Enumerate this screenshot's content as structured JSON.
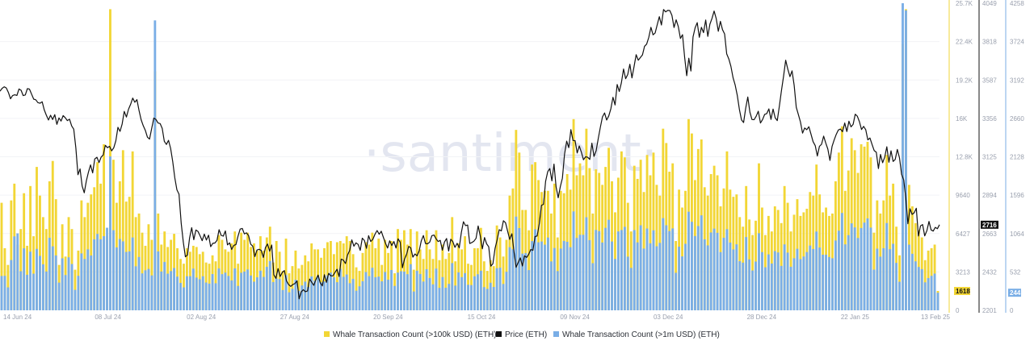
{
  "chart_data": {
    "type": "bar+line",
    "title": "",
    "watermark": "·santiment·",
    "x_tick_labels": [
      "14 Jun 24",
      "08 Jul 24",
      "02 Aug 24",
      "27 Aug 24",
      "20 Sep 24",
      "15 Oct 24",
      "09 Nov 24",
      "03 Dec 24",
      "28 Dec 24",
      "22 Jan 25",
      "13 Feb 25"
    ],
    "axes": {
      "count_100k": {
        "min": 0,
        "max": 25700,
        "ticks": [
          "0",
          "3213",
          "6427",
          "9640",
          "12.8K",
          "16K",
          "19.2K",
          "22.4K",
          "25.7K"
        ],
        "current_label": "1618",
        "color": "#f2d635"
      },
      "price": {
        "min": 2201,
        "max": 4049,
        "ticks": [
          "2201",
          "2432",
          "2663",
          "2894",
          "3125",
          "3356",
          "3587",
          "3818",
          "4049"
        ],
        "current_label": "2716",
        "color": "#111111"
      },
      "count_1m": {
        "min": 0,
        "max": 4258,
        "ticks": [
          "0",
          "532",
          "1064",
          "1596",
          "2128",
          "2660",
          "3192",
          "3724",
          "4258"
        ],
        "current_label": "244",
        "color": "#7aaee6"
      }
    },
    "series": [
      {
        "name": "Whale Transaction Count (>100k USD) (ETH)",
        "type": "bar",
        "color": "#f2d635",
        "values": [
          9000,
          5200,
          3800,
          9200,
          10600,
          5500,
          6800,
          9800,
          5400,
          10400,
          6200,
          12000,
          9600,
          7800,
          6800,
          10800,
          12500,
          9300,
          3800,
          7200,
          4500,
          7800,
          6800,
          3400,
          5000,
          9200,
          7800,
          9000,
          9700,
          10300,
          12400,
          10600,
          13900,
          6200,
          25200,
          12600,
          9000,
          10800,
          13400,
          9100,
          9500,
          13300,
          7800,
          8100,
          6500,
          5400,
          7200,
          5900,
          20000,
          8100,
          5500,
          6600,
          5300,
          5900,
          6400,
          5200,
          4300,
          3900,
          5200,
          4900,
          5400,
          5300,
          4700,
          4900,
          4000,
          3900,
          4600,
          4100,
          6300,
          5900,
          5100,
          4900,
          5600,
          6600,
          3900,
          6500,
          5900,
          6500,
          5300,
          5600,
          5000,
          6200,
          5000,
          6100,
          7000,
          4000,
          5800,
          4900,
          3300,
          6000,
          3100,
          3700,
          5000,
          3500,
          3800,
          4600,
          4100,
          5600,
          5100,
          5100,
          4400,
          5200,
          5700,
          5800,
          4700,
          5700,
          5800,
          5600,
          6200,
          5800,
          4700,
          3600,
          3300,
          4800,
          5700,
          5500,
          6500,
          5200,
          6000,
          3800,
          5900,
          4800,
          5800,
          3100,
          6800,
          5900,
          6700,
          5500,
          6800,
          3400,
          6600,
          5100,
          4300,
          6700,
          5100,
          4300,
          6700,
          4200,
          5500,
          4300,
          4800,
          7800,
          4100,
          5600,
          5100,
          6200,
          3900,
          3800,
          5200,
          5200,
          6900,
          4100,
          3300,
          4200,
          3700,
          7100,
          6100,
          4500,
          5900,
          9600,
          10200,
          15100,
          13200,
          8400,
          8400,
          6700,
          12200,
          12400,
          10900,
          9900,
          10000,
          10000,
          8100,
          10600,
          6100,
          10000,
          9800,
          11400,
          10100,
          16000,
          11300,
          12300,
          11300,
          15200,
          11900,
          8100,
          11800,
          11500,
          10500,
          12000,
          13600,
          10800,
          8200,
          11100,
          13300,
          12800,
          9000,
          6600,
          12100,
          11000,
          12600,
          9900,
          13000,
          11300,
          13200,
          10500,
          9600,
          15200,
          14000,
          11600,
          12300,
          5800,
          10100,
          8600,
          10000,
          16000,
          14800,
          10900,
          13500,
          14300,
          10300,
          9600,
          11400,
          12100,
          11300,
          8700,
          10200,
          13300,
          10100,
          9500,
          9700,
          7800,
          7000,
          10400,
          7600,
          6300,
          7500,
          12300,
          8600,
          6300,
          7900,
          6600,
          8700,
          8400,
          7300,
          10400,
          9000,
          6600,
          8000,
          9300,
          7900,
          8200,
          8500,
          9900,
          9600,
          12200,
          9700,
          8200,
          8600,
          7900,
          8100,
          10800,
          13200,
          15400,
          10000,
          11700,
          14400,
          13400,
          11500,
          13900,
          13700,
          14100,
          12800,
          6500,
          9200,
          8100,
          9200,
          13000,
          9600,
          10600,
          7000,
          4600,
          22300,
          25200,
          10500,
          8700,
          7300,
          6700,
          6100,
          4200,
          5000,
          5200,
          5500,
          1618
        ]
      },
      {
        "name": "Price (ETH)",
        "type": "line",
        "color": "#111111",
        "values": [
          3520,
          3537,
          3546,
          3539,
          3512,
          3474,
          3493,
          3498,
          3494,
          3533,
          3525,
          3493,
          3497,
          3535,
          3532,
          3502,
          3472,
          3468,
          3451,
          3447,
          3456,
          3407,
          3375,
          3346,
          3375,
          3349,
          3378,
          3320,
          3359,
          3340,
          3373,
          3360,
          3343,
          3351,
          3311,
          3291,
          3178,
          3017,
          3052,
          2949,
          2908,
          2980,
          3033,
          3076,
          3028,
          3112,
          3122,
          3090,
          3123,
          3136,
          3194,
          3180,
          3188,
          3161,
          3179,
          3221,
          3302,
          3278,
          3322,
          3398,
          3364,
          3411,
          3441,
          3478,
          3453,
          3469,
          3404,
          3348,
          3312,
          3284,
          3243,
          3231,
          3294,
          3358,
          3350,
          3328,
          3325,
          3296,
          3218,
          3199,
          3224,
          3176,
          3097,
          2998,
          2926,
          2900,
          2726,
          2612,
          2523,
          2534,
          2637,
          2698,
          2626,
          2684,
          2676,
          2649,
          2620,
          2660,
          2624,
          2653,
          2584,
          2604,
          2606,
          2622,
          2686,
          2652,
          2647,
          2679,
          2595,
          2607,
          2567,
          2592,
          2597,
          2648,
          2690,
          2694,
          2661,
          2667,
          2651,
          2599,
          2587,
          2524,
          2564,
          2568,
          2562,
          2519,
          2579,
          2600,
          2557,
          2594,
          2415,
          2393,
          2452,
          2404,
          2429,
          2440,
          2379,
          2356,
          2345,
          2356,
          2362,
          2378,
          2270,
          2312,
          2325,
          2313,
          2318,
          2389,
          2370,
          2351,
          2387,
          2413,
          2367,
          2348,
          2415,
          2369,
          2423,
          2409,
          2408,
          2428,
          2448,
          2404,
          2509,
          2503,
          2483,
          2534,
          2562,
          2625,
          2587,
          2607,
          2598,
          2562,
          2635,
          2621,
          2574,
          2650,
          2615,
          2628,
          2659,
          2681,
          2659,
          2677,
          2640,
          2605,
          2576,
          2619,
          2591,
          2615,
          2576,
          2631,
          2611,
          2457,
          2508,
          2538,
          2585,
          2577,
          2521,
          2540,
          2529,
          2559,
          2619,
          2651,
          2603,
          2601,
          2612,
          2650,
          2654,
          2631,
          2615,
          2622,
          2563,
          2612,
          2633,
          2558,
          2629,
          2614,
          2580,
          2604,
          2577,
          2669,
          2734,
          2711,
          2714,
          2603,
          2609,
          2617,
          2634,
          2709,
          2649,
          2571,
          2639,
          2601,
          2583,
          2467,
          2482,
          2573,
          2625,
          2686,
          2679,
          2740,
          2728,
          2677,
          2628,
          2662,
          2552,
          2460,
          2489,
          2517,
          2468,
          2529,
          2519,
          2538,
          2567,
          2562,
          2645,
          2648,
          2721,
          2832,
          2839,
          2977,
          3035,
          3054,
          2980,
          3081,
          2943,
          2878,
          2945,
          2996,
          3138,
          3219,
          3180,
          3288,
          3223,
          3222,
          3148,
          3190,
          3152,
          3107,
          3125,
          3122,
          3109,
          3207,
          3127,
          3162,
          3235,
          3303,
          3365,
          3389,
          3346,
          3371,
          3414,
          3483,
          3437,
          3560,
          3518,
          3570,
          3653,
          3595,
          3620,
          3682,
          3600,
          3668,
          3739,
          3706,
          3722,
          3738,
          3790,
          3803,
          3843,
          3904,
          3859,
          3870,
          3920,
          3968,
          3918,
          4011,
          3997,
          4006,
          4005,
          3976,
          3903,
          3949,
          3908,
          3837,
          3860,
          3725,
          3613,
          3718,
          3641,
          3846,
          3901,
          3932,
          3844,
          3904,
          3872,
          3948,
          3849,
          3923,
          3958,
          4002,
          3957,
          3880,
          3940,
          3890,
          3864,
          3744,
          3714,
          3669,
          3600,
          3556,
          3494,
          3410,
          3347,
          3331,
          3417,
          3485,
          3393,
          3349,
          3348,
          3369,
          3399,
          3328,
          3349,
          3380,
          3385,
          3413,
          3350,
          3412,
          3360,
          3343,
          3430,
          3524,
          3610,
          3706,
          3651,
          3607,
          3642,
          3555,
          3423,
          3379,
          3334,
          3267,
          3298,
          3288,
          3306,
          3262,
          3216,
          3192,
          3130,
          3188,
          3200,
          3249,
          3208,
          3171,
          3103,
          3187,
          3226,
          3260,
          3286,
          3292,
          3276,
          3328,
          3277,
          3339,
          3305,
          3320,
          3381,
          3369,
          3336,
          3289,
          3308,
          3288,
          3227,
          3238,
          3198,
          3162,
          3152,
          3054,
          3139,
          3089,
          3123,
          3185,
          3092,
          3161,
          3097,
          3109,
          3169,
          3118,
          3019,
          2986,
          2876,
          2722,
          2812,
          2778,
          2788,
          2815,
          2648,
          2709,
          2717,
          2649,
          2680,
          2736,
          2685,
          2678,
          2700,
          2692,
          2716
        ]
      },
      {
        "name": "Whale Transaction Count (>1m USD) (ETH)",
        "type": "bar",
        "color": "#7aaee6",
        "values": [
          476,
          478,
          318,
          697,
          1025,
          1067,
          542,
          860,
          493,
          813,
          508,
          852,
          755,
          638,
          538,
          1006,
          887,
          761,
          384,
          721,
          489,
          735,
          642,
          284,
          478,
          789,
          712,
          845,
          760,
          984,
          1059,
          985,
          1028,
          1145,
          2134,
          1111,
          872,
          989,
          956,
          809,
          817,
          1010,
          610,
          739,
          512,
          555,
          574,
          484,
          4020,
          817,
          538,
          670,
          508,
          544,
          586,
          467,
          380,
          318,
          472,
          473,
          578,
          454,
          430,
          472,
          385,
          370,
          503,
          375,
          580,
          501,
          522,
          476,
          414,
          581,
          338,
          521,
          537,
          566,
          483,
          397,
          458,
          549,
          463,
          603,
          683,
          392,
          441,
          433,
          281,
          488,
          250,
          298,
          423,
          270,
          345,
          398,
          324,
          470,
          412,
          469,
          387,
          400,
          485,
          523,
          457,
          390,
          575,
          464,
          497,
          376,
          436,
          272,
          333,
          403,
          530,
          474,
          590,
          459,
          467,
          402,
          531,
          424,
          559,
          338,
          523,
          542,
          537,
          501,
          640,
          261,
          549,
          504,
          399,
          570,
          448,
          360,
          578,
          311,
          461,
          313,
          367,
          655,
          343,
          526,
          460,
          515,
          354,
          350,
          471,
          500,
          549,
          322,
          297,
          382,
          324,
          584,
          591,
          365,
          534,
          875,
          847,
          1299,
          1140,
          786,
          793,
          558,
          960,
          1123,
          943,
          954,
          910,
          1009,
          678,
          864,
          544,
          856,
          962,
          950,
          875,
          1371,
          1004,
          1047,
          1047,
          1290,
          973,
          653,
          1114,
          1098,
          940,
          1143,
          1255,
          954,
          712,
          1094,
          1113,
          1157,
          744,
          588,
          1112,
          942,
          1179,
          856,
          1134,
          929,
          1109,
          888,
          935,
          1278,
          1179,
          1099,
          1135,
          520,
          882,
          748,
          922,
          1367,
          1227,
          1030,
          1168,
          1317,
          984,
          900,
          1079,
          1133,
          1075,
          807,
          1006,
          1125,
          939,
          844,
          915,
          681,
          661,
          1016,
          706,
          552,
          676,
          1069,
          807,
          597,
          775,
          649,
          821,
          802,
          616,
          914,
          800,
          604,
          722,
          853,
          709,
          746,
          808,
          898,
          850,
          1092,
          870,
          771,
          770,
          739,
          722,
          968,
          1104,
          1350,
          914,
          1042,
          1206,
          1150,
          1003,
          1141,
          1216,
          1274,
          1147,
          564,
          855,
          744,
          861,
          1210,
          847,
          922,
          658,
          396,
          4258,
          4160,
          910,
          784,
          679,
          601,
          571,
          388,
          447,
          478,
          509,
          244
        ]
      }
    ]
  },
  "legend": [
    {
      "label": "Whale Transaction Count (>100k USD) (ETH)",
      "color": "#f2d635"
    },
    {
      "label": "Price (ETH)",
      "color": "#111111"
    },
    {
      "label": "Whale Transaction Count (>1m USD) (ETH)",
      "color": "#7aaee6"
    }
  ]
}
